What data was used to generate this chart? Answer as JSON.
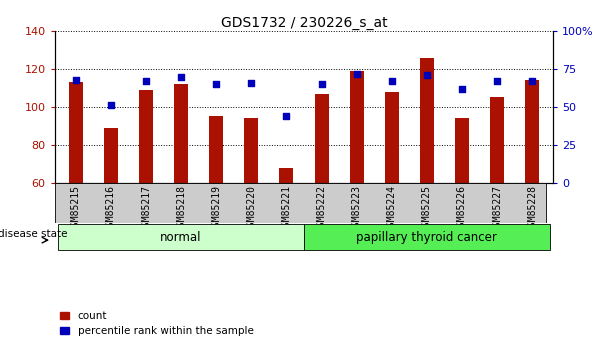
{
  "title": "GDS1732 / 230226_s_at",
  "samples": [
    "GSM85215",
    "GSM85216",
    "GSM85217",
    "GSM85218",
    "GSM85219",
    "GSM85220",
    "GSM85221",
    "GSM85222",
    "GSM85223",
    "GSM85224",
    "GSM85225",
    "GSM85226",
    "GSM85227",
    "GSM85228"
  ],
  "counts": [
    113,
    89,
    109,
    112,
    95,
    94,
    68,
    107,
    119,
    108,
    126,
    94,
    105,
    114
  ],
  "percentiles": [
    68,
    51,
    67,
    70,
    65,
    66,
    44,
    65,
    72,
    67,
    71,
    62,
    67,
    67
  ],
  "ylim_left": [
    60,
    140
  ],
  "ylim_right": [
    0,
    100
  ],
  "yticks_left": [
    60,
    80,
    100,
    120,
    140
  ],
  "yticks_right": [
    0,
    25,
    50,
    75,
    100
  ],
  "bar_color": "#aa1100",
  "dot_color": "#0000bb",
  "normal_label": "normal",
  "cancer_label": "papillary thyroid cancer",
  "normal_bg": "#ccffcc",
  "cancer_bg": "#55ee55",
  "disease_state_label": "disease state",
  "xlabel_bg": "#cccccc",
  "legend_count_label": "count",
  "legend_percentile_label": "percentile rank within the sample",
  "title_fontsize": 10,
  "tick_fontsize": 7,
  "label_fontsize": 8,
  "bar_width": 0.4
}
